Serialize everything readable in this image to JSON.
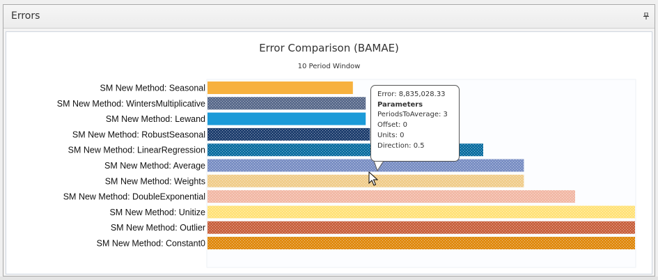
{
  "panel": {
    "title": "Errors",
    "pin_icon": "pin-icon"
  },
  "chart_data": {
    "type": "bar",
    "orientation": "horizontal",
    "title": "Error Comparison (BAMAE)",
    "subtitle": "10 Period Window",
    "xlabel": "",
    "ylabel": "",
    "xlim": [
      0,
      1
    ],
    "grid": false,
    "legend": "none",
    "categories": [
      "SM New Method: Seasonal",
      "SM New Method: WintersMultiplicative",
      "SM New Method: Lewand",
      "SM New Method: RobustSeasonal",
      "SM New Method: LinearRegression",
      "SM New Method: Average",
      "SM New Method: Weights",
      "SM New Method: DoubleExponential",
      "SM New Method: Unitize",
      "SM New Method: Outlier",
      "SM New Method: Constant0"
    ],
    "values": [
      0.34,
      0.37,
      0.37,
      0.38,
      0.645,
      0.74,
      0.74,
      0.86,
      1.0,
      1.0,
      1.0
    ],
    "colors": [
      "#f7b13e",
      "#5a6b8c",
      "#1b9ad8",
      "#1f3f6f",
      "#0d6fa1",
      "#7a8fc4",
      "#f0cd8c",
      "#f2b9a6",
      "#ffe27a",
      "#c9623f",
      "#e08a10"
    ],
    "patterned": [
      false,
      true,
      false,
      true,
      true,
      true,
      true,
      true,
      true,
      true,
      true
    ]
  },
  "tooltip": {
    "error_line": "Error: 8,835,028.33",
    "heading": "Parameters",
    "lines": [
      "PeriodsToAverage: 3",
      "Offset: 0",
      "Units: 0",
      "Direction: 0.5"
    ]
  }
}
